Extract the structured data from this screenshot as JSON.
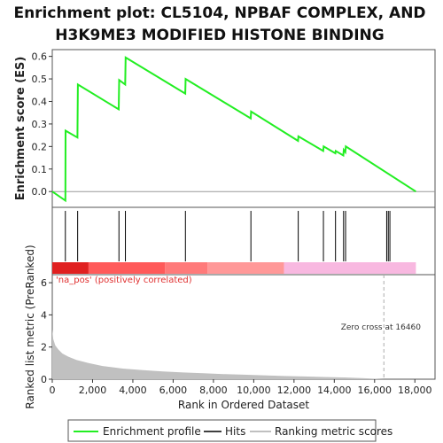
{
  "chart_data": {
    "type": "line",
    "title_lines": [
      "Enrichment plot: CL5104, NPBAF COMPLEX, AND",
      "H3K9ME3 MODIFIED HISTONE BINDING"
    ],
    "top_panel": {
      "ylabel": "Enrichment score (ES)",
      "yticks": [
        "0.0",
        "0.1",
        "0.2",
        "0.3",
        "0.4",
        "0.5",
        "0.6"
      ],
      "ylim": [
        -0.07,
        0.63
      ],
      "series": [
        {
          "name": "Enrichment profile",
          "color": "#22ee22",
          "x": [
            0,
            650,
            660,
            1250,
            1270,
            3300,
            3320,
            3620,
            3640,
            6600,
            6620,
            9850,
            9870,
            12200,
            12220,
            13450,
            13470,
            14050,
            14070,
            14450,
            14470,
            14550,
            14570,
            18050
          ],
          "y": [
            0.0,
            -0.04,
            0.27,
            0.24,
            0.475,
            0.365,
            0.495,
            0.475,
            0.595,
            0.435,
            0.5,
            0.325,
            0.355,
            0.225,
            0.245,
            0.18,
            0.2,
            0.17,
            0.18,
            0.16,
            0.185,
            0.175,
            0.2,
            0.0
          ]
        }
      ],
      "zero_line": 0.0
    },
    "hits_panel": {
      "legend_label": "Hits",
      "hit_positions": [
        650,
        1260,
        3310,
        3630,
        6610,
        9860,
        12210,
        13460,
        14060,
        14460,
        14560,
        16600,
        16680,
        16760
      ]
    },
    "colorbar": {
      "segments": [
        {
          "from": 0,
          "to": 1800,
          "color": "#e02020"
        },
        {
          "from": 1800,
          "to": 5600,
          "color": "#ff5a5a"
        },
        {
          "from": 5600,
          "to": 7700,
          "color": "#ff7a7a"
        },
        {
          "from": 7700,
          "to": 11500,
          "color": "#ff9898"
        },
        {
          "from": 11500,
          "to": 18050,
          "color": "#f8b8e0"
        }
      ]
    },
    "bottom_panel": {
      "legend_label": "Ranking metric scores",
      "ylabel": "Ranked list metric (PreRanked)",
      "yticks": [
        "0",
        "2",
        "4",
        "6"
      ],
      "ylim": [
        0,
        6.5
      ],
      "metric_x": [
        0,
        50,
        150,
        300,
        500,
        800,
        1200,
        1800,
        2500,
        3500,
        4500,
        5500,
        6500,
        7500,
        8500,
        9500,
        10500,
        11500,
        12500,
        13500,
        14500,
        15500,
        16460,
        17000,
        17600,
        18050
      ],
      "metric_y": [
        3.1,
        2.5,
        2.1,
        1.85,
        1.6,
        1.4,
        1.2,
        1.0,
        0.82,
        0.66,
        0.56,
        0.48,
        0.42,
        0.37,
        0.32,
        0.28,
        0.24,
        0.2,
        0.17,
        0.14,
        0.11,
        0.06,
        0.0,
        -0.05,
        -0.1,
        -0.15
      ],
      "pos_label": "'na_pos' (positively correlated)",
      "zero_cross_label": "Zero cross at 16460",
      "zero_cross_x": 16460
    },
    "xaxis": {
      "xlabel": "Rank in Ordered Dataset",
      "xticks": [
        0,
        2000,
        4000,
        6000,
        8000,
        10000,
        12000,
        14000,
        16000,
        18000
      ],
      "xtick_labels": [
        "0",
        "2,000",
        "4,000",
        "6,000",
        "8,000",
        "10,000",
        "12,000",
        "14,000",
        "16,000",
        "18,000"
      ],
      "xlim": [
        0,
        19000
      ]
    },
    "legend": {
      "items": [
        "Enrichment profile",
        "Hits",
        "Ranking metric scores"
      ],
      "colors": [
        "#22ee22",
        "#000000",
        "#c0c0c0"
      ]
    }
  }
}
